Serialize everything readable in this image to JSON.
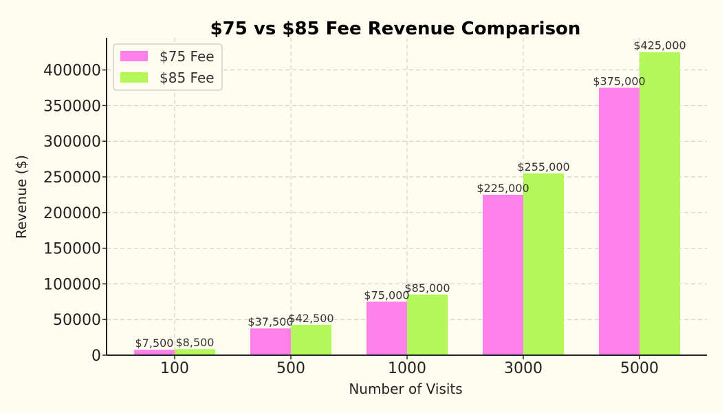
{
  "chart_data": {
    "type": "bar",
    "title": "$75 vs $85 Fee Revenue Comparison",
    "xlabel": "Number of Visits",
    "ylabel": "Revenue ($)",
    "categories": [
      "100",
      "500",
      "1000",
      "3000",
      "5000"
    ],
    "series": [
      {
        "name": "$75 Fee",
        "color": "#ff80e8",
        "values": [
          7500,
          37500,
          75000,
          225000,
          375000
        ],
        "labels": [
          "$7,500",
          "$37,500",
          "$75,000",
          "$225,000",
          "$375,000"
        ]
      },
      {
        "name": "$85 Fee",
        "color": "#b3f75a",
        "values": [
          8500,
          42500,
          85000,
          255000,
          425000
        ],
        "labels": [
          "$8,500",
          "$42,500",
          "$85,000",
          "$255,000",
          "$425,000"
        ]
      }
    ],
    "ylim": [
      0,
      445000
    ],
    "yticks": [
      0,
      50000,
      100000,
      150000,
      200000,
      250000,
      300000,
      350000,
      400000
    ],
    "grid": true,
    "legend_position": "top-left"
  }
}
